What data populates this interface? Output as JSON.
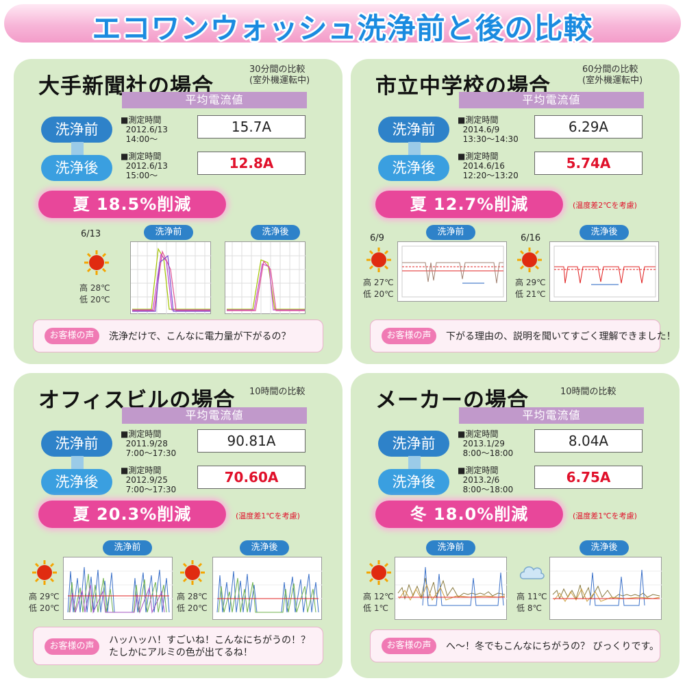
{
  "title": "エコワンウォッシュ洗浄前と後の比較",
  "labels": {
    "avg_current": "平均電流値",
    "before": "洗浄前",
    "after": "洗浄後",
    "voice": "お客様の声"
  },
  "cases": [
    {
      "title": "大手新聞社の場合",
      "note": "30分間の比較\n(室外機運転中)",
      "before_time": "■測定時間\n  2012.6/13\n  14:00〜",
      "before_value": "15.7A",
      "after_time": "■測定時間\n  2012.6/13\n  15:00〜",
      "after_value": "12.8A",
      "reduction": "夏 18.5%削減",
      "temp_note": "",
      "date1": "6/13",
      "date2": "",
      "temp1": "高 28℃\n低 20℃",
      "temp2": "",
      "icon1": "sun-icon",
      "icon2": "",
      "voice": "洗浄だけで、こんなに電力量が下がるの？"
    },
    {
      "title": "市立中学校の場合",
      "note": "60分間の比較\n(室外機運転中)",
      "before_time": "■測定時間\n  2014.6/9\n  13:30〜14:30",
      "before_value": "6.29A",
      "after_time": "■測定時間\n  2014.6/16\n  12:20〜13:20",
      "after_value": "5.74A",
      "reduction": "夏 12.7%削減",
      "temp_note": "(温度差2℃を考慮)",
      "date1": "6/9",
      "date2": "6/16",
      "temp1": "高 27℃\n低 20℃",
      "temp2": "高 29℃\n低 21℃",
      "icon1": "sun-icon",
      "icon2": "sun-icon",
      "voice": "下がる理由の、説明を聞いてすごく理解できました！"
    },
    {
      "title": "オフィスビルの場合",
      "note": "10時間の比較",
      "before_time": "■測定時間\n  2011.9/28\n  7:00〜17:30",
      "before_value": "90.81A",
      "after_time": "■測定時間\n  2012.9/25\n  7:00〜17:30",
      "after_value": "70.60A",
      "reduction": "夏 20.3%削減",
      "temp_note": "(温度差1℃を考慮)",
      "date1": "",
      "date2": "",
      "temp1": "高 29℃\n低 20℃",
      "temp2": "高 28℃\n低 20℃",
      "icon1": "sun-icon",
      "icon2": "sun-icon",
      "voice": "ハッハッハ！すごいね！こんなにちがうの！？\nたしかにアルミの色が出てるね！"
    },
    {
      "title": "メーカーの場合",
      "note": "10時間の比較",
      "before_time": "■測定時間\n  2013.1/29\n  8:00〜18:00",
      "before_value": "8.04A",
      "after_time": "■測定時間\n  2013.2/6\n  8:00〜18:00",
      "after_value": "6.75A",
      "reduction": "冬 18.0%削減",
      "temp_note": "(温度差1℃を考慮)",
      "date1": "",
      "date2": "",
      "temp1": "高 12℃\n低 1℃",
      "temp2": "高 11℃\n低 8℃",
      "icon1": "sun-icon",
      "icon2": "cloud-icon",
      "voice": "へ〜！冬でもこんなにちがうの？ びっくりです。"
    }
  ],
  "colors": {
    "title_blue": "#1a8be0",
    "card_green": "#d8ebc9",
    "avg_bar": "#c199cb",
    "pill_blue": "#2e82c9",
    "reduction_pink": "#e8479a",
    "value_red": "#e0102a"
  }
}
